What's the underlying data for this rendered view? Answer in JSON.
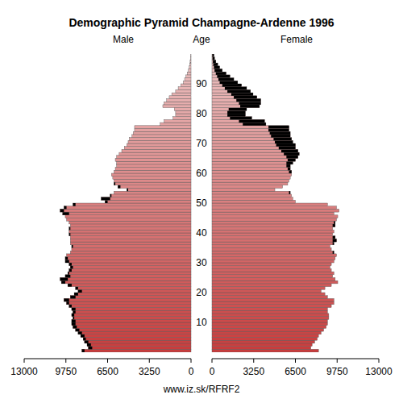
{
  "chart_data": {
    "type": "pyramid",
    "title": "Demographic Pyramid Champagne-Ardenne 1996",
    "orientation": "horizontal",
    "y_label": "Age",
    "annotations": [
      "www.iz.sk/RFRF2"
    ],
    "categories": [
      0,
      1,
      2,
      3,
      4,
      5,
      6,
      7,
      8,
      9,
      10,
      11,
      12,
      13,
      14,
      15,
      16,
      17,
      18,
      19,
      20,
      21,
      22,
      23,
      24,
      25,
      26,
      27,
      28,
      29,
      30,
      31,
      32,
      33,
      34,
      35,
      36,
      37,
      38,
      39,
      40,
      41,
      42,
      43,
      44,
      45,
      46,
      47,
      48,
      49,
      50,
      51,
      52,
      53,
      54,
      55,
      56,
      57,
      58,
      59,
      60,
      61,
      62,
      63,
      64,
      65,
      66,
      67,
      68,
      69,
      70,
      71,
      72,
      73,
      74,
      75,
      76,
      77,
      78,
      79,
      80,
      81,
      82,
      83,
      84,
      85,
      86,
      87,
      88,
      89,
      90,
      91,
      92,
      93,
      94,
      95,
      96,
      97,
      98,
      99
    ],
    "series": [
      {
        "name": "Male",
        "color": "#c83c3c",
        "values": [
          8500,
          8000,
          8100,
          8300,
          8400,
          8600,
          8800,
          9000,
          9200,
          9300,
          9300,
          9200,
          9300,
          9200,
          9300,
          9500,
          9700,
          9900,
          9400,
          9100,
          8800,
          9000,
          9600,
          10100,
          10200,
          9800,
          9600,
          9500,
          9400,
          9500,
          9800,
          9800,
          9700,
          9400,
          9300,
          9300,
          9400,
          9400,
          9400,
          9500,
          9500,
          9500,
          9400,
          9500,
          9700,
          9800,
          10000,
          10200,
          9900,
          9200,
          6700,
          7000,
          6300,
          6000,
          5000,
          5700,
          6000,
          6000,
          6100,
          6200,
          6000,
          5900,
          5800,
          5800,
          5900,
          5800,
          5600,
          5400,
          5200,
          5000,
          4900,
          4800,
          4600,
          4500,
          4400,
          4400,
          2400,
          2100,
          1400,
          1200,
          1200,
          1300,
          2200,
          2100,
          1900,
          1700,
          1500,
          1200,
          1000,
          800,
          600,
          500,
          400,
          300,
          200,
          150,
          100,
          70,
          40,
          25
        ]
      },
      {
        "name": "Female",
        "color": "#c83c3c",
        "values": [
          8300,
          7700,
          7800,
          8000,
          8200,
          8300,
          8500,
          8700,
          8900,
          9000,
          9000,
          9100,
          9100,
          9000,
          9000,
          9300,
          9500,
          9500,
          9000,
          8800,
          8500,
          8800,
          9300,
          9800,
          9600,
          9400,
          9500,
          9300,
          9200,
          9300,
          9500,
          9600,
          9700,
          9500,
          9300,
          9200,
          9500,
          9700,
          9600,
          9400,
          9500,
          9400,
          9600,
          9600,
          9700,
          9800,
          9500,
          9900,
          9700,
          9000,
          6500,
          6300,
          6200,
          6100,
          4900,
          5500,
          5900,
          6000,
          6100,
          6200,
          6200,
          6100,
          6100,
          6300,
          6500,
          6700,
          6800,
          6700,
          6500,
          6500,
          6300,
          6200,
          6100,
          6100,
          6000,
          6000,
          4200,
          4100,
          3100,
          2600,
          2600,
          2700,
          3700,
          3800,
          3800,
          3500,
          3200,
          3000,
          2700,
          2300,
          2000,
          1700,
          1400,
          1100,
          800,
          600,
          450,
          300,
          200,
          150
        ]
      }
    ],
    "xlim": [
      0,
      13000
    ],
    "xticks": [
      0,
      3250,
      6500,
      9750,
      13000
    ],
    "ylim": [
      0,
      100
    ],
    "yticks": [
      10,
      20,
      30,
      40,
      50,
      60,
      70,
      80,
      90
    ]
  }
}
